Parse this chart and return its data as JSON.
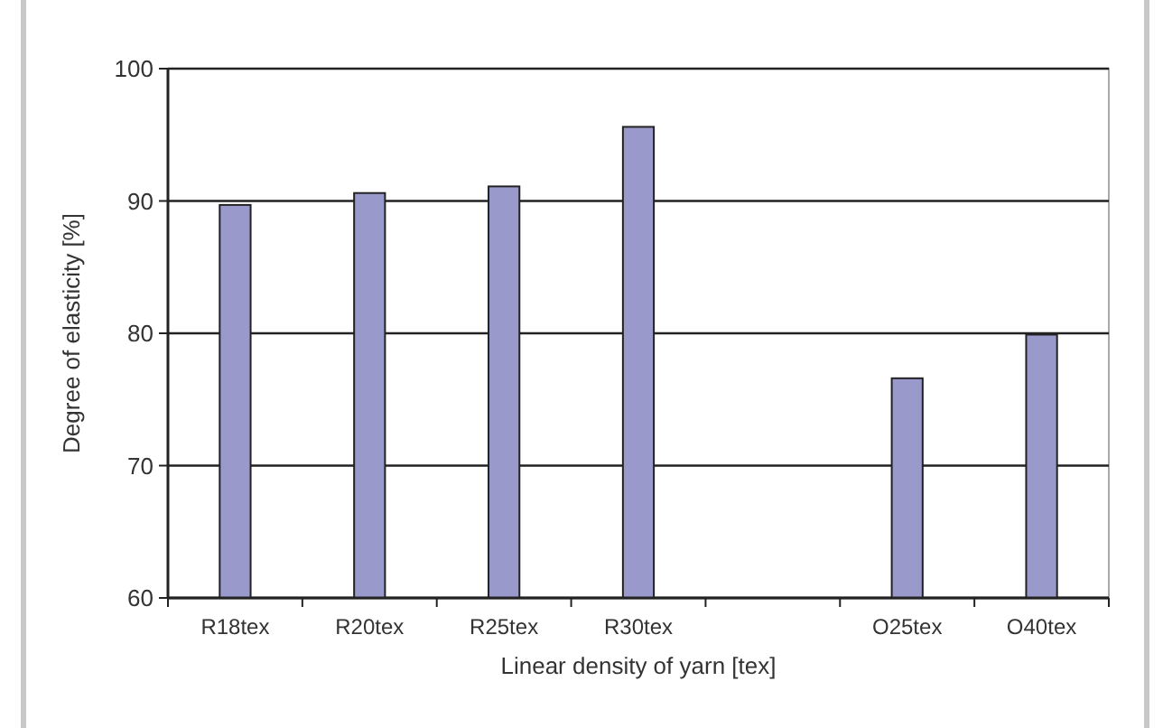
{
  "chart_data": {
    "type": "bar",
    "xlabel": "Linear density of yarn [tex]",
    "ylabel": "Degree of elasticity [%]",
    "categories": [
      "R18tex",
      "R20tex",
      "R25tex",
      "R30tex",
      null,
      "O25tex",
      "O40tex"
    ],
    "values": [
      89.7,
      90.6,
      91.1,
      95.6,
      null,
      76.6,
      79.9
    ],
    "color": "#9999cc",
    "ylim": [
      60,
      100
    ],
    "yticks": [
      60,
      70,
      80,
      90,
      100
    ],
    "grid": "y"
  }
}
